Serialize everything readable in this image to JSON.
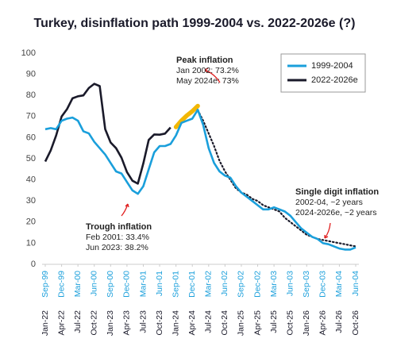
{
  "chart_data": {
    "type": "line",
    "title": "Turkey, disinflation path 1999-2004 vs. 2022-2026e (?)",
    "x": [
      0,
      1,
      2,
      3,
      4,
      5,
      6,
      7,
      8,
      9,
      10,
      11,
      12,
      13,
      14,
      15,
      16,
      17,
      18,
      19,
      20,
      21,
      22,
      23,
      24,
      25,
      26,
      27,
      28,
      29,
      30,
      31,
      32,
      33,
      34,
      35,
      36,
      37,
      38,
      39,
      40,
      41,
      42,
      43,
      44,
      45,
      46,
      47,
      48,
      49,
      50,
      51,
      52,
      53,
      54,
      55,
      56,
      57
    ],
    "xlim": [
      0,
      57
    ],
    "xticks": [
      {
        "value": 0,
        "label": "Sep-99"
      },
      {
        "value": 3,
        "label": "Dec-99"
      },
      {
        "value": 6,
        "label": "Mar-00"
      },
      {
        "value": 9,
        "label": "Jun-00"
      },
      {
        "value": 12,
        "label": "Sep-00"
      },
      {
        "value": 15,
        "label": "Dec-00"
      },
      {
        "value": 18,
        "label": "Mar-01"
      },
      {
        "value": 21,
        "label": "Jun-01"
      },
      {
        "value": 24,
        "label": "Sep-01"
      },
      {
        "value": 27,
        "label": "Dec-01"
      },
      {
        "value": 30,
        "label": "Mar-02"
      },
      {
        "value": 33,
        "label": "Jun-02"
      },
      {
        "value": 36,
        "label": "Sep-02"
      },
      {
        "value": 39,
        "label": "Dec-02"
      },
      {
        "value": 42,
        "label": "Mar-03"
      },
      {
        "value": 45,
        "label": "Jun-03"
      },
      {
        "value": 48,
        "label": "Sep-03"
      },
      {
        "value": 51,
        "label": "Dec-03"
      },
      {
        "value": 54,
        "label": "Mar-04"
      },
      {
        "value": 57,
        "label": "Jun-04"
      }
    ],
    "x2ticks": [
      {
        "value": 0,
        "label": "Jan-22"
      },
      {
        "value": 3,
        "label": "Apr-22"
      },
      {
        "value": 6,
        "label": "Jul-22"
      },
      {
        "value": 9,
        "label": "Oct-22"
      },
      {
        "value": 12,
        "label": "Jan-23"
      },
      {
        "value": 15,
        "label": "Apr-23"
      },
      {
        "value": 18,
        "label": "Jul-23"
      },
      {
        "value": 21,
        "label": "Oct-23"
      },
      {
        "value": 24,
        "label": "Jan-24"
      },
      {
        "value": 27,
        "label": "Apr-24"
      },
      {
        "value": 30,
        "label": "Jul-24"
      },
      {
        "value": 33,
        "label": "Oct-24"
      },
      {
        "value": 36,
        "label": "Jan-25"
      },
      {
        "value": 39,
        "label": "Apr-25"
      },
      {
        "value": 42,
        "label": "Jul-25"
      },
      {
        "value": 45,
        "label": "Oct-25"
      },
      {
        "value": 48,
        "label": "Jan-26"
      },
      {
        "value": 51,
        "label": "Apr-26"
      },
      {
        "value": 54,
        "label": "Jul-26"
      },
      {
        "value": 57,
        "label": "Oct-26"
      }
    ],
    "ylim": [
      0,
      100
    ],
    "yticks": [
      0,
      10,
      20,
      30,
      40,
      50,
      60,
      70,
      80,
      90,
      100
    ],
    "legend": "top-right",
    "series": [
      {
        "name": "1999-2004",
        "color": "#1a9fdb",
        "style": "solid",
        "values": [
          64,
          64.5,
          64,
          68,
          69,
          69.5,
          68,
          63,
          62,
          58,
          55,
          52,
          48,
          44,
          43,
          39,
          35,
          33.4,
          37,
          45,
          53,
          56,
          56,
          57,
          61,
          67,
          68,
          69,
          73.2,
          66,
          55,
          48,
          44,
          42,
          41,
          37,
          34,
          32,
          30,
          28,
          26,
          26,
          27,
          26,
          25,
          23,
          20,
          17,
          15,
          13,
          12,
          10,
          9.5,
          8.5,
          7.5,
          7,
          7,
          8
        ]
      },
      {
        "name": "2022-2026e",
        "color": "#1a1a2a",
        "style": "solid",
        "values": [
          48.7,
          54,
          61,
          70,
          73.5,
          78.6,
          79.6,
          80,
          83.5,
          85.5,
          84.4,
          64,
          57.7,
          55,
          50.5,
          43.7,
          39.6,
          38.2,
          47.8,
          58.9,
          61.5,
          61.4,
          61.9,
          64.8,
          null,
          null,
          null,
          null,
          null,
          null,
          null,
          null,
          null,
          null,
          null,
          null,
          null,
          null,
          null,
          null,
          null,
          null,
          null,
          null,
          null,
          null,
          null,
          null,
          null,
          null,
          null,
          null,
          null,
          null,
          null,
          null,
          null,
          null
        ]
      },
      {
        "color": "#f2b705",
        "style": "highlight",
        "values": [
          null,
          null,
          null,
          null,
          null,
          null,
          null,
          null,
          null,
          null,
          null,
          null,
          null,
          null,
          null,
          null,
          null,
          null,
          null,
          null,
          null,
          null,
          null,
          null,
          65,
          68,
          70.5,
          72.5,
          75,
          null,
          null,
          null,
          null,
          null,
          null,
          null,
          null,
          null,
          null,
          null,
          null,
          null,
          null,
          null,
          null,
          null,
          null,
          null,
          null,
          null,
          null,
          null,
          null,
          null,
          null,
          null,
          null,
          null
        ]
      },
      {
        "color": "#1a1a2a",
        "style": "dotted",
        "values": [
          null,
          null,
          null,
          null,
          null,
          null,
          null,
          null,
          null,
          null,
          null,
          null,
          null,
          null,
          null,
          null,
          null,
          null,
          null,
          null,
          null,
          null,
          null,
          null,
          null,
          null,
          null,
          null,
          73,
          68,
          62,
          56,
          49,
          44,
          40,
          36,
          34,
          33,
          31,
          30,
          28,
          27,
          26,
          25,
          22,
          20,
          18,
          16,
          14,
          13,
          12,
          11.5,
          11,
          10.5,
          10,
          9.5,
          9,
          8.5
        ]
      }
    ],
    "annotations": [
      {
        "title": "Peak inflation",
        "lines": [
          "Jan 2002: 73.2%",
          "May 2024e: 73%"
        ]
      },
      {
        "title": "Trough inflation",
        "lines": [
          "Feb 2001: 33.4%",
          "Jun 2023: 38.2%"
        ]
      },
      {
        "title": "Single digit inflation",
        "lines": [
          "2002-04, ~2 years",
          "2024-2026e, ~2 years"
        ]
      }
    ]
  }
}
